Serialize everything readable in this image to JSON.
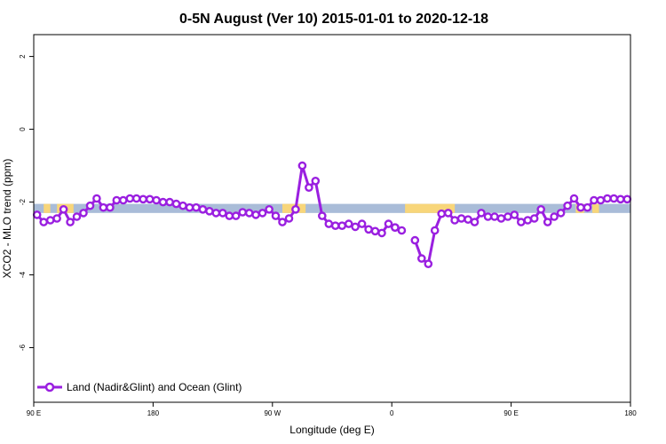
{
  "chart_data": {
    "type": "line",
    "title": "0-5N August (Ver 10)   2015-01-01 to 2020-12-18",
    "xlabel": "Longitude (deg E)",
    "ylabel": "XCO2 - MLO trend (ppm)",
    "xlim": [
      90,
      450
    ],
    "ylim": [
      -7.5,
      2.6
    ],
    "x_ticks": [
      {
        "value": 90,
        "label": "90 E"
      },
      {
        "value": 162,
        "label": "180"
      },
      {
        "value": 234,
        "label": "90 W"
      },
      {
        "value": 306,
        "label": "0"
      },
      {
        "value": 378,
        "label": "90 E"
      },
      {
        "value": 450,
        "label": "180"
      }
    ],
    "y_ticks": [
      {
        "value": 2,
        "label": "2"
      },
      {
        "value": 0,
        "label": "0"
      },
      {
        "value": -2,
        "label": "-2"
      },
      {
        "value": -4,
        "label": "-4"
      },
      {
        "value": -6,
        "label": "-6"
      }
    ],
    "surface_band": {
      "y_range": [
        -2.3,
        -2.05
      ],
      "ocean_color": "#a9bcd8",
      "land_color": "#f8d67a",
      "land_segments": [
        [
          96,
          100
        ],
        [
          104,
          114
        ],
        [
          240,
          254
        ],
        [
          314,
          344
        ],
        [
          417,
          422
        ],
        [
          427,
          431
        ]
      ]
    },
    "series": [
      {
        "name": "Land (Nadir&Glint) and Ocean (Glint)",
        "color": "#9a1fe0",
        "segments": [
          {
            "x": [
              92,
              96,
              100,
              104,
              108,
              112,
              116,
              120,
              124,
              128,
              132,
              136,
              140,
              144,
              148,
              152,
              156,
              160,
              164,
              168,
              172,
              176,
              180,
              184,
              188,
              192,
              196,
              200,
              204,
              208,
              212,
              216,
              220,
              224,
              228,
              232,
              236,
              240,
              244,
              248,
              252,
              256,
              260,
              264,
              268,
              272,
              276,
              280,
              284,
              288,
              292,
              296,
              300,
              304,
              308
            ],
            "y": [
              -2.35,
              -2.55,
              -2.5,
              -2.45,
              -2.2,
              -2.55,
              -2.4,
              -2.3,
              -2.1,
              -1.9,
              -2.15,
              -2.15,
              -1.95,
              -1.95,
              -1.9,
              -1.9,
              -1.92,
              -1.92,
              -1.95,
              -2.0,
              -2.0,
              -2.05,
              -2.1,
              -2.15,
              -2.15,
              -2.2,
              -2.25,
              -2.3,
              -2.3,
              -2.38,
              -2.38,
              -2.28,
              -2.3,
              -2.35,
              -2.3,
              -2.2,
              -2.38,
              -2.55,
              -2.45,
              -2.2,
              -1.0,
              -1.6,
              -1.42,
              -2.38,
              -2.6,
              -2.65,
              -2.65,
              -2.6,
              -2.68,
              -2.6,
              -2.75,
              -2.8,
              -2.85,
              -2.6,
              -2.7
            ]
          },
          {
            "x": [
              308,
              312
            ],
            "y": [
              -2.7,
              -2.78
            ]
          },
          {
            "x": [
              320,
              324,
              328,
              332,
              336,
              340,
              344,
              348,
              352,
              356,
              360,
              364,
              368,
              372,
              376,
              380,
              384,
              388,
              392,
              396,
              400,
              404,
              408,
              412,
              416,
              420,
              424,
              428,
              432,
              436,
              440,
              444,
              448
            ],
            "y": [
              -3.05,
              -3.55,
              -3.7,
              -2.78,
              -2.32,
              -2.3,
              -2.5,
              -2.45,
              -2.48,
              -2.55,
              -2.3,
              -2.4,
              -2.4,
              -2.45,
              -2.4,
              -2.35,
              -2.55,
              -2.5,
              -2.45,
              -2.2,
              -2.55,
              -2.4,
              -2.3,
              -2.1,
              -1.9,
              -2.15,
              -2.15,
              -1.95,
              -1.95,
              -1.9,
              -1.9,
              -1.92,
              -1.92
            ]
          }
        ]
      }
    ],
    "legend": {
      "position": "bottom-left",
      "label": "Land (Nadir&Glint) and Ocean (Glint)"
    }
  }
}
